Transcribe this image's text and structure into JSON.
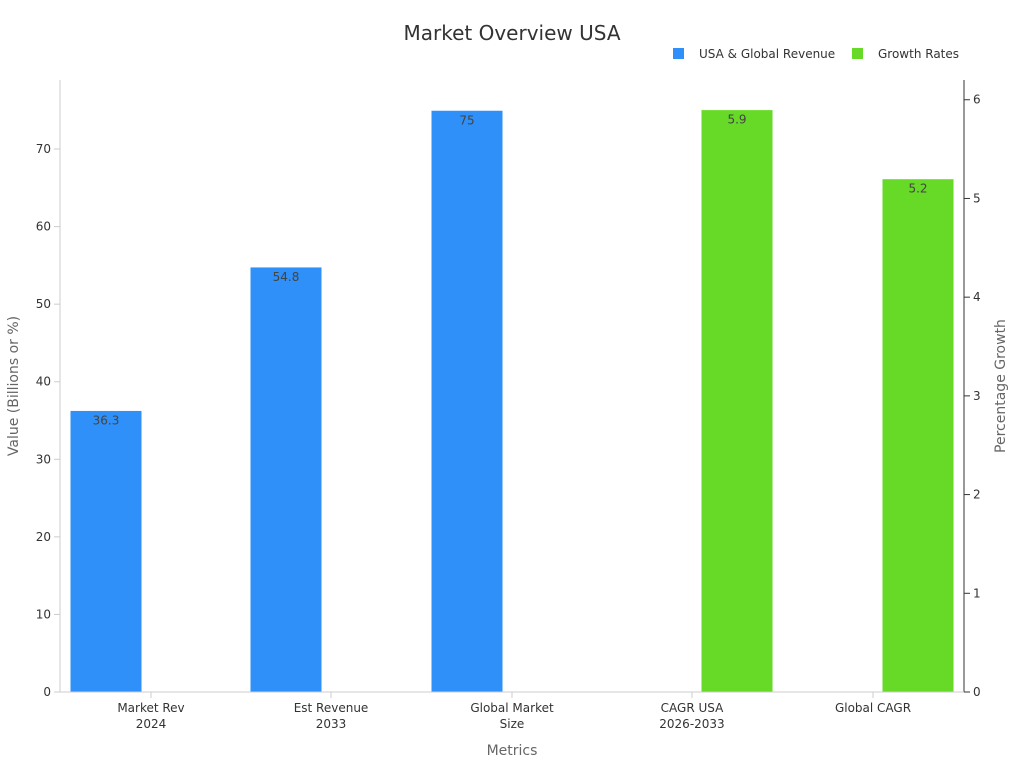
{
  "chart_data": {
    "type": "bar",
    "title": "Market Overview USA",
    "xlabel": "Metrics",
    "ylabel": "Value (Billions or %)",
    "y2label": "Percentage Growth",
    "categories": [
      [
        "Market Rev",
        "2024"
      ],
      [
        "Est Revenue",
        "2033"
      ],
      [
        "Global Market",
        "Size"
      ],
      [
        "CAGR USA",
        "2026-2033"
      ],
      [
        "Global CAGR"
      ]
    ],
    "series": [
      {
        "name": "USA & Global Revenue",
        "axis": "left",
        "color": "#2E90F8",
        "values": [
          36.3,
          54.8,
          75,
          null,
          null
        ],
        "labels": [
          "36.3",
          "54.8",
          "75",
          "",
          ""
        ]
      },
      {
        "name": "Growth Rates",
        "axis": "right",
        "color": "#66DA26",
        "values": [
          null,
          null,
          null,
          5.9,
          5.2
        ],
        "labels": [
          "",
          "",
          "",
          "5.9",
          "5.2"
        ]
      }
    ],
    "ylim": [
      0,
      78.9
    ],
    "y2lim": [
      0,
      6.2
    ],
    "yticks": [
      0,
      10,
      20,
      30,
      40,
      50,
      60,
      70
    ],
    "y2ticks": [
      0,
      1,
      2,
      3,
      4,
      5,
      6
    ],
    "legend": "top-right",
    "grid": false
  }
}
